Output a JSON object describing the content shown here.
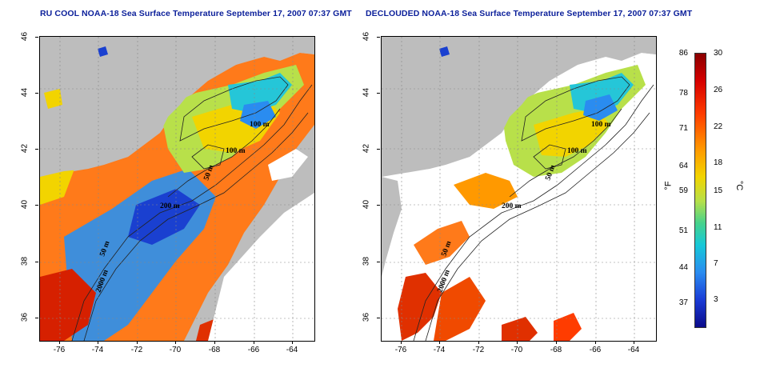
{
  "titles": {
    "left": "RU COOL NOAA-18 Sea Surface Temperature September 17, 2007 07:37 GMT",
    "right": "DECLOUDED NOAA-18 Sea Surface Temperature September 17, 2007 07:37 GMT"
  },
  "axes": {
    "x_ticks": [
      "-76",
      "-74",
      "-72",
      "-70",
      "-68",
      "-66",
      "-64"
    ],
    "y_ticks": [
      "46",
      "44",
      "42",
      "40",
      "38",
      "36"
    ]
  },
  "contour_labels": {
    "left": [
      "100 m",
      "100 m",
      "50 m",
      "200 m",
      "50 m",
      "2000 m"
    ],
    "right": [
      "100 m",
      "100 m",
      "50 m",
      "200 m",
      "50 m",
      "2000 m"
    ]
  },
  "colorbar": {
    "fahrenheit_ticks": [
      "86",
      "78",
      "71",
      "64",
      "59",
      "51",
      "44",
      "37"
    ],
    "celsius_ticks": [
      "30",
      "26",
      "22",
      "18",
      "15",
      "11",
      "7",
      "3"
    ],
    "fahrenheit_unit": "°F",
    "celsius_unit": "°C"
  },
  "colors": {
    "land": "#bdbdbd",
    "cloud_mask": "#ffffff",
    "title": "#0b1f9a",
    "contour": "#222222"
  }
}
